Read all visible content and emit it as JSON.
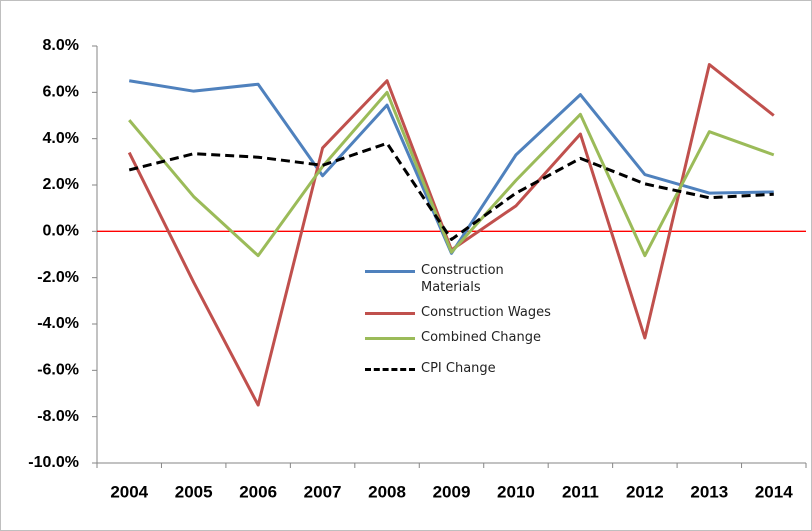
{
  "chart_data": {
    "type": "line",
    "categories": [
      "2004",
      "2005",
      "2006",
      "2007",
      "2008",
      "2009",
      "2010",
      "2011",
      "2012",
      "2013",
      "2014"
    ],
    "series": [
      {
        "name": "Construction Materials",
        "color": "#4f81bd",
        "dashed": false,
        "values": [
          6.5,
          6.05,
          6.35,
          2.4,
          5.45,
          -0.95,
          3.3,
          5.9,
          2.45,
          1.65,
          1.7
        ]
      },
      {
        "name": "Construction Wages",
        "color": "#c0504d",
        "dashed": false,
        "values": [
          3.4,
          -2.2,
          -7.5,
          3.6,
          6.5,
          -0.8,
          1.1,
          4.2,
          -4.6,
          7.2,
          5.0
        ]
      },
      {
        "name": "Combined Change",
        "color": "#9bbb59",
        "dashed": false,
        "values": [
          4.8,
          1.5,
          -1.05,
          2.8,
          6.0,
          -0.9,
          2.2,
          5.05,
          -1.05,
          4.3,
          3.3
        ]
      },
      {
        "name": "CPI Change",
        "color": "#000000",
        "dashed": true,
        "values": [
          2.65,
          3.35,
          3.2,
          2.85,
          3.8,
          -0.35,
          1.65,
          3.15,
          2.05,
          1.45,
          1.6
        ]
      }
    ],
    "ylim": [
      -10,
      8
    ],
    "yticks": [
      {
        "value": -10,
        "label": "-10.0%"
      },
      {
        "value": -8,
        "label": "-8.0%"
      },
      {
        "value": -6,
        "label": "-6.0%"
      },
      {
        "value": -4,
        "label": "-4.0%"
      },
      {
        "value": -2,
        "label": "-2.0%"
      },
      {
        "value": 0,
        "label": "0.0%"
      },
      {
        "value": 2,
        "label": "2.0%"
      },
      {
        "value": 4,
        "label": "4.0%"
      },
      {
        "value": 6,
        "label": "6.0%"
      },
      {
        "value": 8,
        "label": "8.0%"
      }
    ],
    "zero_line_color": "#ff0000",
    "grid": false,
    "legend": "center"
  }
}
